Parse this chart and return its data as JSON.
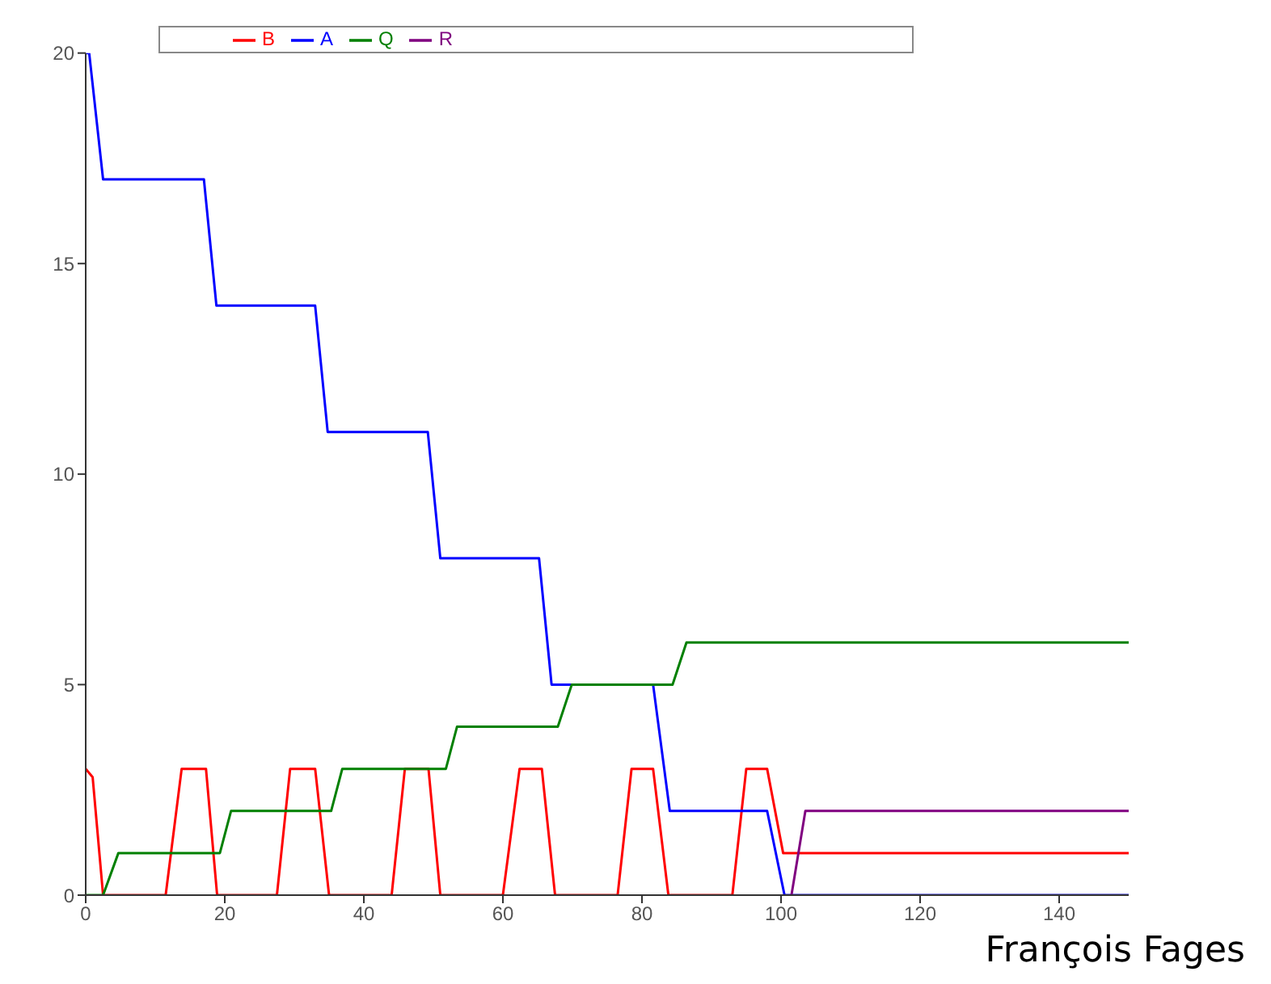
{
  "chart_data": {
    "type": "line",
    "legend": "top left",
    "grid": false,
    "marker": "none",
    "line_style": "solid",
    "xlim": [
      0,
      150
    ],
    "xticks": [
      0,
      20,
      40,
      60,
      80,
      100,
      120,
      140
    ],
    "ylim": [
      0,
      20
    ],
    "yticks": [
      0,
      5,
      10,
      15,
      20
    ],
    "annotations": [
      "François Fages"
    ],
    "series": [
      {
        "name": "B",
        "color": "#ff0000",
        "x": [
          0,
          1,
          2.5,
          11.5,
          13.8,
          17.3,
          18.9,
          27.5,
          29.4,
          33,
          35,
          44,
          45.9,
          49.3,
          51,
          60,
          62.4,
          65.6,
          67.5,
          76.5,
          78.5,
          81.6,
          83.8,
          93,
          95,
          98,
          100.3,
          150
        ],
        "values": [
          3,
          2.8,
          0,
          0,
          3,
          3,
          0,
          0,
          3,
          3,
          0,
          0,
          3,
          3,
          0,
          0,
          3,
          3,
          0,
          0,
          3,
          3,
          0,
          0,
          3,
          3,
          1,
          1
        ]
      },
      {
        "name": "A",
        "color": "#0000ff",
        "x": [
          0,
          0.5,
          2.5,
          17,
          18.8,
          33,
          34.8,
          49.2,
          51,
          65.2,
          67,
          81.6,
          84,
          98,
          100.5,
          150
        ],
        "values": [
          20,
          20,
          17,
          17,
          14,
          14,
          11,
          11,
          8,
          8,
          5,
          5,
          2,
          2,
          0,
          0
        ]
      },
      {
        "name": "Q",
        "color": "#008000",
        "x": [
          0,
          2.5,
          4.7,
          19.3,
          20.9,
          35.3,
          36.9,
          51.8,
          53.4,
          67.9,
          69.9,
          84.4,
          86.4,
          150
        ],
        "values": [
          0,
          0,
          1,
          1,
          2,
          2,
          3,
          3,
          4,
          4,
          5,
          5,
          6,
          6
        ]
      },
      {
        "name": "R",
        "color": "#800080",
        "x": [
          101.5,
          103.5,
          150
        ],
        "values": [
          0,
          2,
          2
        ]
      }
    ]
  }
}
